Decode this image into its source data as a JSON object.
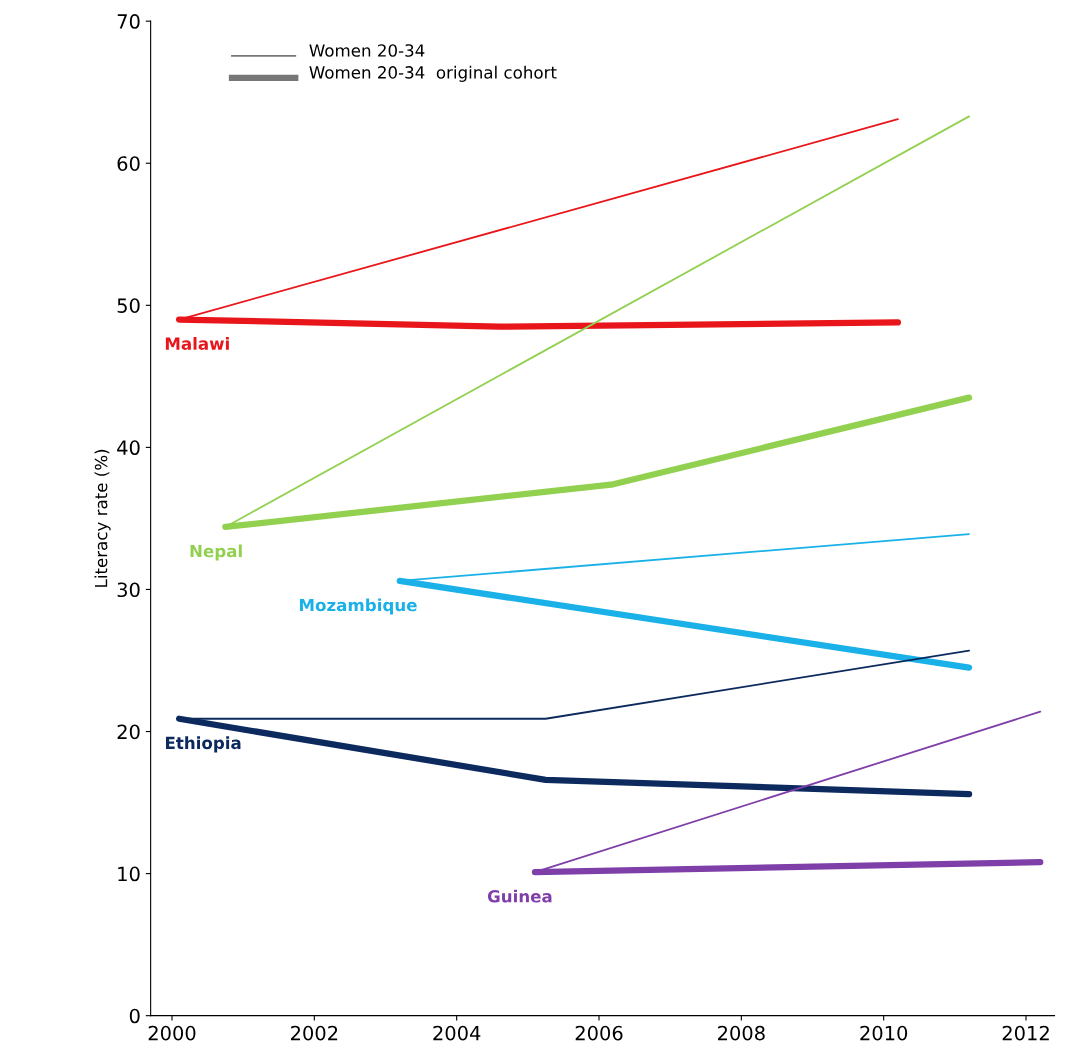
{
  "chart_data": {
    "type": "line",
    "ylabel": "Literacy rate (%)",
    "xlim": [
      1999.7,
      2012.4
    ],
    "xticks": [
      2000,
      2002,
      2004,
      2006,
      2008,
      2010,
      2012
    ],
    "ylim": [
      0,
      70
    ],
    "yticks": [
      0,
      10,
      20,
      30,
      40,
      50,
      60,
      70
    ],
    "grid": false,
    "annotations": [
      "Women 20-34",
      "Women 20-34  original cohort"
    ],
    "series": [
      {
        "name": "Malawi",
        "color": "#e8161b",
        "x": [
          2000.1,
          2010.2
        ],
        "values": [
          49.0,
          63.1
        ]
      },
      {
        "color": "#e8161b",
        "x": [
          2000.1,
          2004.6,
          2010.2
        ],
        "values": [
          49.0,
          48.5,
          48.8
        ]
      },
      {
        "name": "Nepal",
        "color": "#92d050",
        "x": [
          2000.75,
          2011.2
        ],
        "values": [
          34.4,
          63.3
        ]
      },
      {
        "color": "#92d050",
        "x": [
          2000.75,
          2006.2,
          2011.2
        ],
        "values": [
          34.4,
          37.4,
          43.5
        ]
      },
      {
        "name": "Mozambique",
        "color": "#1ab0e8",
        "x": [
          2003.2,
          2011.2
        ],
        "values": [
          30.6,
          33.9
        ]
      },
      {
        "color": "#1ab0e8",
        "x": [
          2003.2,
          2011.2
        ],
        "values": [
          30.6,
          24.5
        ]
      },
      {
        "name": "Ethiopia",
        "color": "#0d2a5e",
        "x": [
          2000.1,
          2005.25,
          2011.2
        ],
        "values": [
          20.9,
          20.9,
          25.7
        ]
      },
      {
        "color": "#0d2a5e",
        "x": [
          2000.1,
          2005.25,
          2011.2
        ],
        "values": [
          20.9,
          16.6,
          15.6
        ]
      },
      {
        "name": "Guinea",
        "color": "#7f3fa8",
        "x": [
          2005.1,
          2012.2
        ],
        "values": [
          10.1,
          21.4
        ]
      },
      {
        "color": "#7f3fa8",
        "x": [
          2005.1,
          2012.2
        ],
        "values": [
          10.1,
          10.8
        ]
      }
    ]
  }
}
